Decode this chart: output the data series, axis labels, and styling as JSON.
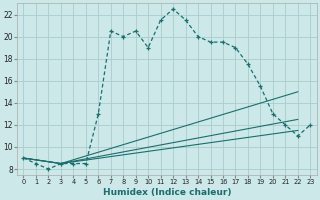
{
  "xlabel": "Humidex (Indice chaleur)",
  "bg_color": "#cce8e8",
  "grid_color": "#aacccc",
  "line_color": "#1a6e6e",
  "xlim": [
    -0.5,
    23.5
  ],
  "ylim": [
    7.5,
    23
  ],
  "yticks": [
    8,
    10,
    12,
    14,
    16,
    18,
    20,
    22
  ],
  "xticks": [
    0,
    1,
    2,
    3,
    4,
    5,
    6,
    7,
    8,
    9,
    10,
    11,
    12,
    13,
    14,
    15,
    16,
    17,
    18,
    19,
    20,
    21,
    22,
    23
  ],
  "main_line": {
    "x": [
      0,
      1,
      2,
      3,
      4,
      5,
      6,
      7,
      8,
      9,
      10,
      11,
      12,
      13,
      14,
      15,
      16,
      17,
      18,
      19,
      20,
      21,
      22,
      23
    ],
    "y": [
      9,
      8.5,
      8,
      8.5,
      8.5,
      8.5,
      13,
      20.5,
      20,
      20.5,
      19,
      21.5,
      22.5,
      21.5,
      20,
      19.5,
      19.5,
      19,
      17.5,
      15.5,
      13,
      12,
      11,
      12
    ]
  },
  "fan_lines": [
    {
      "x": [
        0,
        3,
        22
      ],
      "y": [
        9,
        8.5,
        15
      ]
    },
    {
      "x": [
        0,
        3,
        22
      ],
      "y": [
        9,
        8.5,
        12.5
      ]
    },
    {
      "x": [
        0,
        3,
        22
      ],
      "y": [
        9,
        8.5,
        11.5
      ]
    }
  ]
}
